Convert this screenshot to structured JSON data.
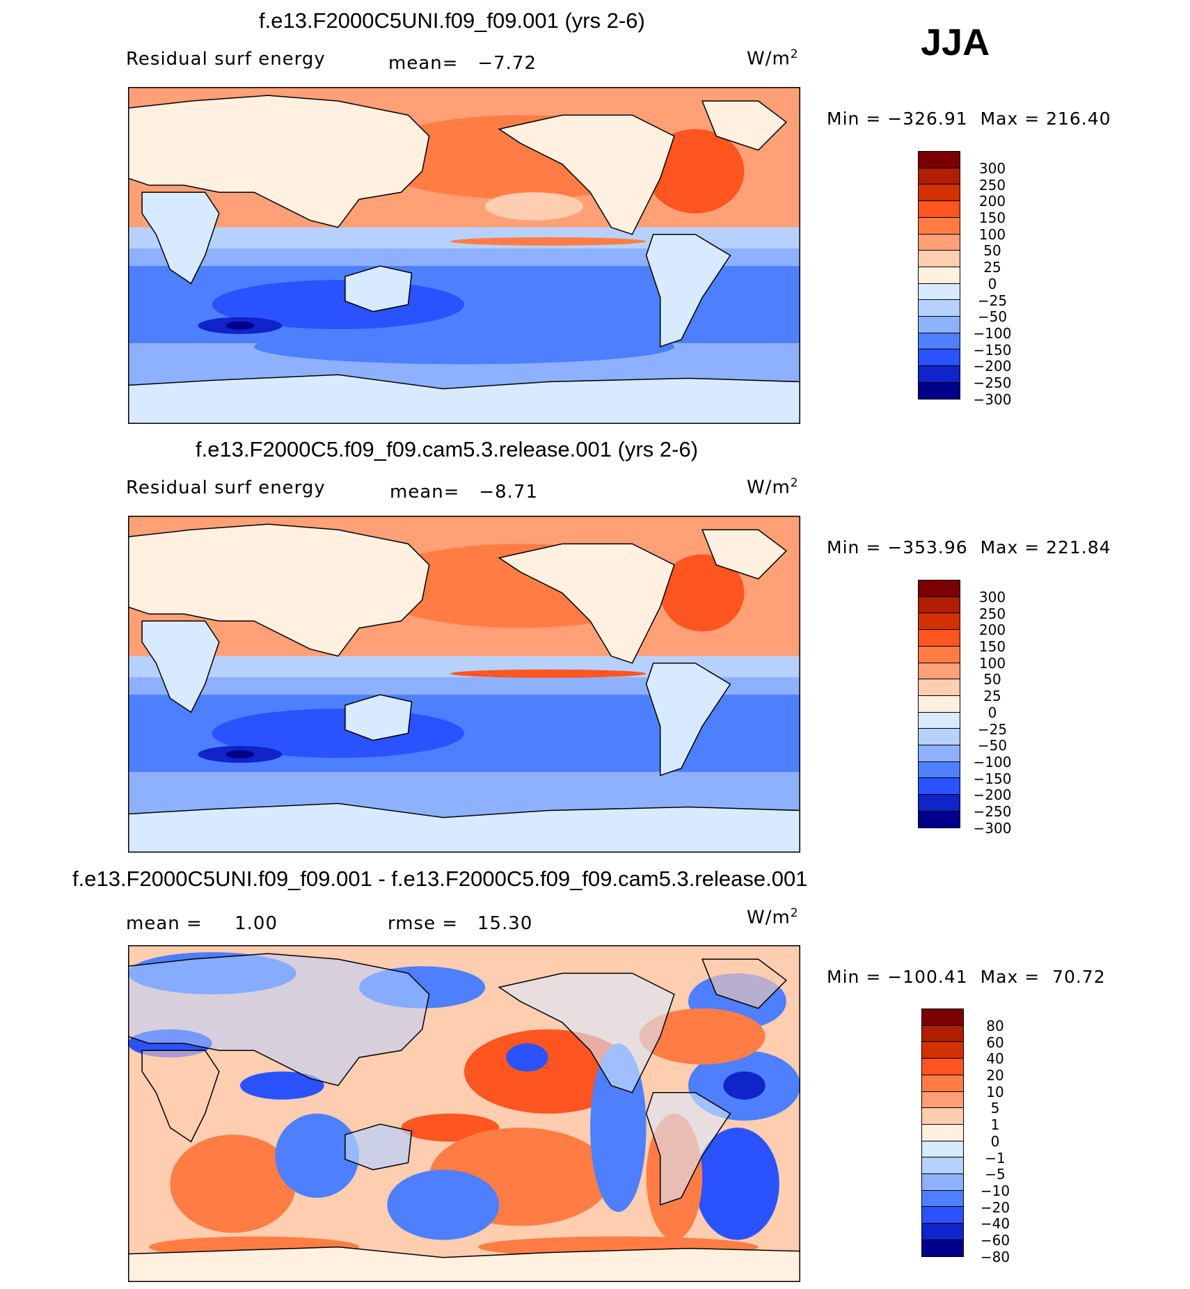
{
  "season_label": "JJA",
  "chart_data": [
    {
      "type": "contour-map",
      "title": "f.e13.F2000C5UNI.f09_f09.001 (yrs 2-6)",
      "variable": "Residual surf energy",
      "mean_label": "mean=",
      "mean_value": "−7.72",
      "units": "W/m",
      "units_sup": "2",
      "min_label": "Min",
      "min_value": "−326.91",
      "max_label": "Max",
      "max_value": "216.40",
      "color_levels": [
        300,
        250,
        200,
        150,
        100,
        50,
        25,
        0,
        -25,
        -50,
        -100,
        -150,
        -200,
        -250,
        -300
      ],
      "level_labels": [
        "300",
        "250",
        "200",
        "150",
        "100",
        "50",
        "25",
        "0",
        "−25",
        "−50",
        "−100",
        "−150",
        "−200",
        "−250",
        "−300"
      ]
    },
    {
      "type": "contour-map",
      "title": "f.e13.F2000C5.f09_f09.cam5.3.release.001 (yrs 2-6)",
      "variable": "Residual surf energy",
      "mean_label": "mean=",
      "mean_value": "−8.71",
      "units": "W/m",
      "units_sup": "2",
      "min_label": "Min",
      "min_value": "−353.96",
      "max_label": "Max",
      "max_value": "221.84",
      "color_levels": [
        300,
        250,
        200,
        150,
        100,
        50,
        25,
        0,
        -25,
        -50,
        -100,
        -150,
        -200,
        -250,
        -300
      ],
      "level_labels": [
        "300",
        "250",
        "200",
        "150",
        "100",
        "50",
        "25",
        "0",
        "−25",
        "−50",
        "−100",
        "−150",
        "−200",
        "−250",
        "−300"
      ]
    },
    {
      "type": "contour-map",
      "title": "f.e13.F2000C5UNI.f09_f09.001 - f.e13.F2000C5.f09_f09.cam5.3.release.001",
      "mean_label": "mean =",
      "mean_value": "1.00",
      "rmse_label": "rmse =",
      "rmse_value": "15.30",
      "units": "W/m",
      "units_sup": "2",
      "min_label": "Min",
      "min_value": "−100.41",
      "max_label": "Max",
      "max_value": "70.72",
      "color_levels": [
        80,
        60,
        40,
        20,
        10,
        5,
        1,
        0,
        -1,
        -5,
        -10,
        -20,
        -40,
        -60,
        -80
      ],
      "level_labels": [
        "80",
        "60",
        "40",
        "20",
        "10",
        "5",
        "1",
        "0",
        "−1",
        "−5",
        "−10",
        "−20",
        "−40",
        "−60",
        "−80"
      ]
    }
  ],
  "colorbar_colors": [
    "#7a0000",
    "#b01e00",
    "#d33100",
    "#ff5520",
    "#ff7d45",
    "#ffa077",
    "#ffcdb0",
    "#fff0e0",
    "#d8eaff",
    "#b7d1ff",
    "#8db1ff",
    "#4d7fff",
    "#2b52ff",
    "#0f24c9",
    "#00008a"
  ]
}
